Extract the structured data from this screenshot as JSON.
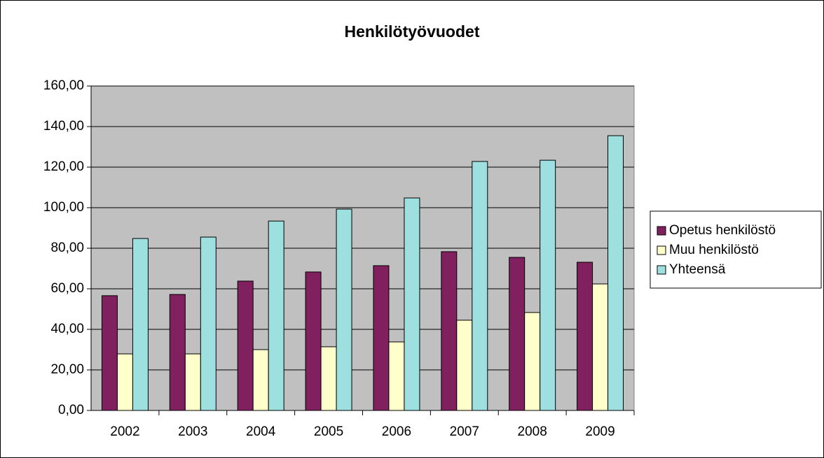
{
  "chart_data": {
    "type": "bar",
    "title": "Henkilötyövuodet",
    "categories": [
      "2002",
      "2003",
      "2004",
      "2005",
      "2006",
      "2007",
      "2008",
      "2009"
    ],
    "series": [
      {
        "name": "Opetus henkilöstö",
        "color": "#80205f",
        "values": [
          56.6,
          57.2,
          63.8,
          68.3,
          71.4,
          78.3,
          75.5,
          73.1
        ]
      },
      {
        "name": "Muu henkilöstö",
        "color": "#ffffcc",
        "values": [
          27.9,
          27.9,
          30.0,
          31.4,
          33.8,
          44.5,
          48.3,
          62.4
        ]
      },
      {
        "name": "Yhteensä",
        "color": "#9ee0e0",
        "values": [
          84.8,
          85.5,
          93.4,
          99.3,
          104.8,
          122.8,
          123.4,
          135.5
        ]
      }
    ],
    "ylim": [
      0,
      160
    ],
    "yticks": [
      {
        "value": 0,
        "label": "0,00"
      },
      {
        "value": 20,
        "label": "20,00"
      },
      {
        "value": 40,
        "label": "40,00"
      },
      {
        "value": 60,
        "label": "60,00"
      },
      {
        "value": 80,
        "label": "80,00"
      },
      {
        "value": 100,
        "label": "100,00"
      },
      {
        "value": 120,
        "label": "120,00"
      },
      {
        "value": 140,
        "label": "140,00"
      },
      {
        "value": 160,
        "label": "160,00"
      }
    ],
    "grid": true,
    "legend": "right",
    "plot_background": "#c0c0c0"
  }
}
